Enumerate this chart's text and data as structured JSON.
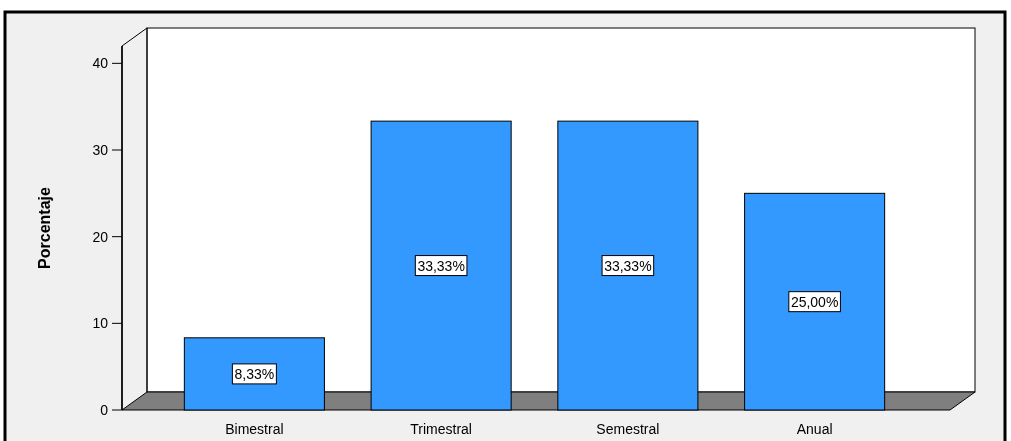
{
  "chart_data": {
    "type": "bar",
    "ylabel": "Porcentaje",
    "categories": [
      "Bimestral",
      "Trimestral",
      "Semestral",
      "Anual"
    ],
    "values": [
      8.33,
      33.33,
      33.33,
      25.0
    ],
    "value_labels": [
      "8,33%",
      "33,33%",
      "33,33%",
      "25,00%"
    ],
    "color": "#3399ff",
    "ylim": [
      0,
      42
    ],
    "yticks": [
      0,
      10,
      20,
      30,
      40
    ],
    "grid": false
  }
}
